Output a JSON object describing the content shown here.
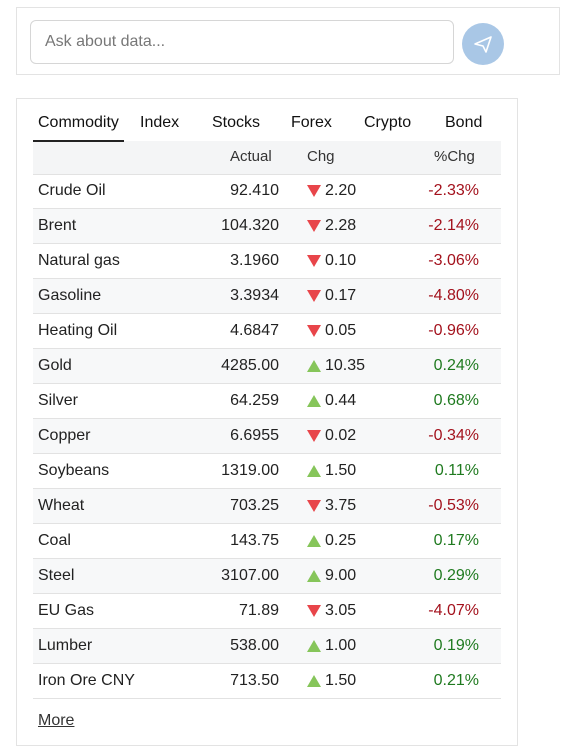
{
  "search": {
    "placeholder": "Ask about data..."
  },
  "tabs": [
    "Commodity",
    "Index",
    "Stocks",
    "Forex",
    "Crypto",
    "Bond"
  ],
  "active_tab": 0,
  "table": {
    "headers": [
      "Actual",
      "Chg",
      "%Chg"
    ],
    "rows": [
      {
        "name": "Crude Oil",
        "actual": "92.410",
        "direction": "down",
        "chg": "2.20",
        "pct": "-2.33%"
      },
      {
        "name": "Brent",
        "actual": "104.320",
        "direction": "down",
        "chg": "2.28",
        "pct": "-2.14%"
      },
      {
        "name": "Natural gas",
        "actual": "3.1960",
        "direction": "down",
        "chg": "0.10",
        "pct": "-3.06%"
      },
      {
        "name": "Gasoline",
        "actual": "3.3934",
        "direction": "down",
        "chg": "0.17",
        "pct": "-4.80%"
      },
      {
        "name": "Heating Oil",
        "actual": "4.6847",
        "direction": "down",
        "chg": "0.05",
        "pct": "-0.96%"
      },
      {
        "name": "Gold",
        "actual": "4285.00",
        "direction": "up",
        "chg": "10.35",
        "pct": "0.24%"
      },
      {
        "name": "Silver",
        "actual": "64.259",
        "direction": "up",
        "chg": "0.44",
        "pct": "0.68%"
      },
      {
        "name": "Copper",
        "actual": "6.6955",
        "direction": "down",
        "chg": "0.02",
        "pct": "-0.34%"
      },
      {
        "name": "Soybeans",
        "actual": "1319.00",
        "direction": "up",
        "chg": "1.50",
        "pct": "0.11%"
      },
      {
        "name": "Wheat",
        "actual": "703.25",
        "direction": "down",
        "chg": "3.75",
        "pct": "-0.53%"
      },
      {
        "name": "Coal",
        "actual": "143.75",
        "direction": "up",
        "chg": "0.25",
        "pct": "0.17%"
      },
      {
        "name": "Steel",
        "actual": "3107.00",
        "direction": "up",
        "chg": "9.00",
        "pct": "0.29%"
      },
      {
        "name": "EU Gas",
        "actual": "71.89",
        "direction": "down",
        "chg": "3.05",
        "pct": "-4.07%"
      },
      {
        "name": "Lumber",
        "actual": "538.00",
        "direction": "up",
        "chg": "1.00",
        "pct": "0.19%"
      },
      {
        "name": "Iron Ore CNY",
        "actual": "713.50",
        "direction": "up",
        "chg": "1.50",
        "pct": "0.21%"
      }
    ]
  },
  "more_link": "More"
}
